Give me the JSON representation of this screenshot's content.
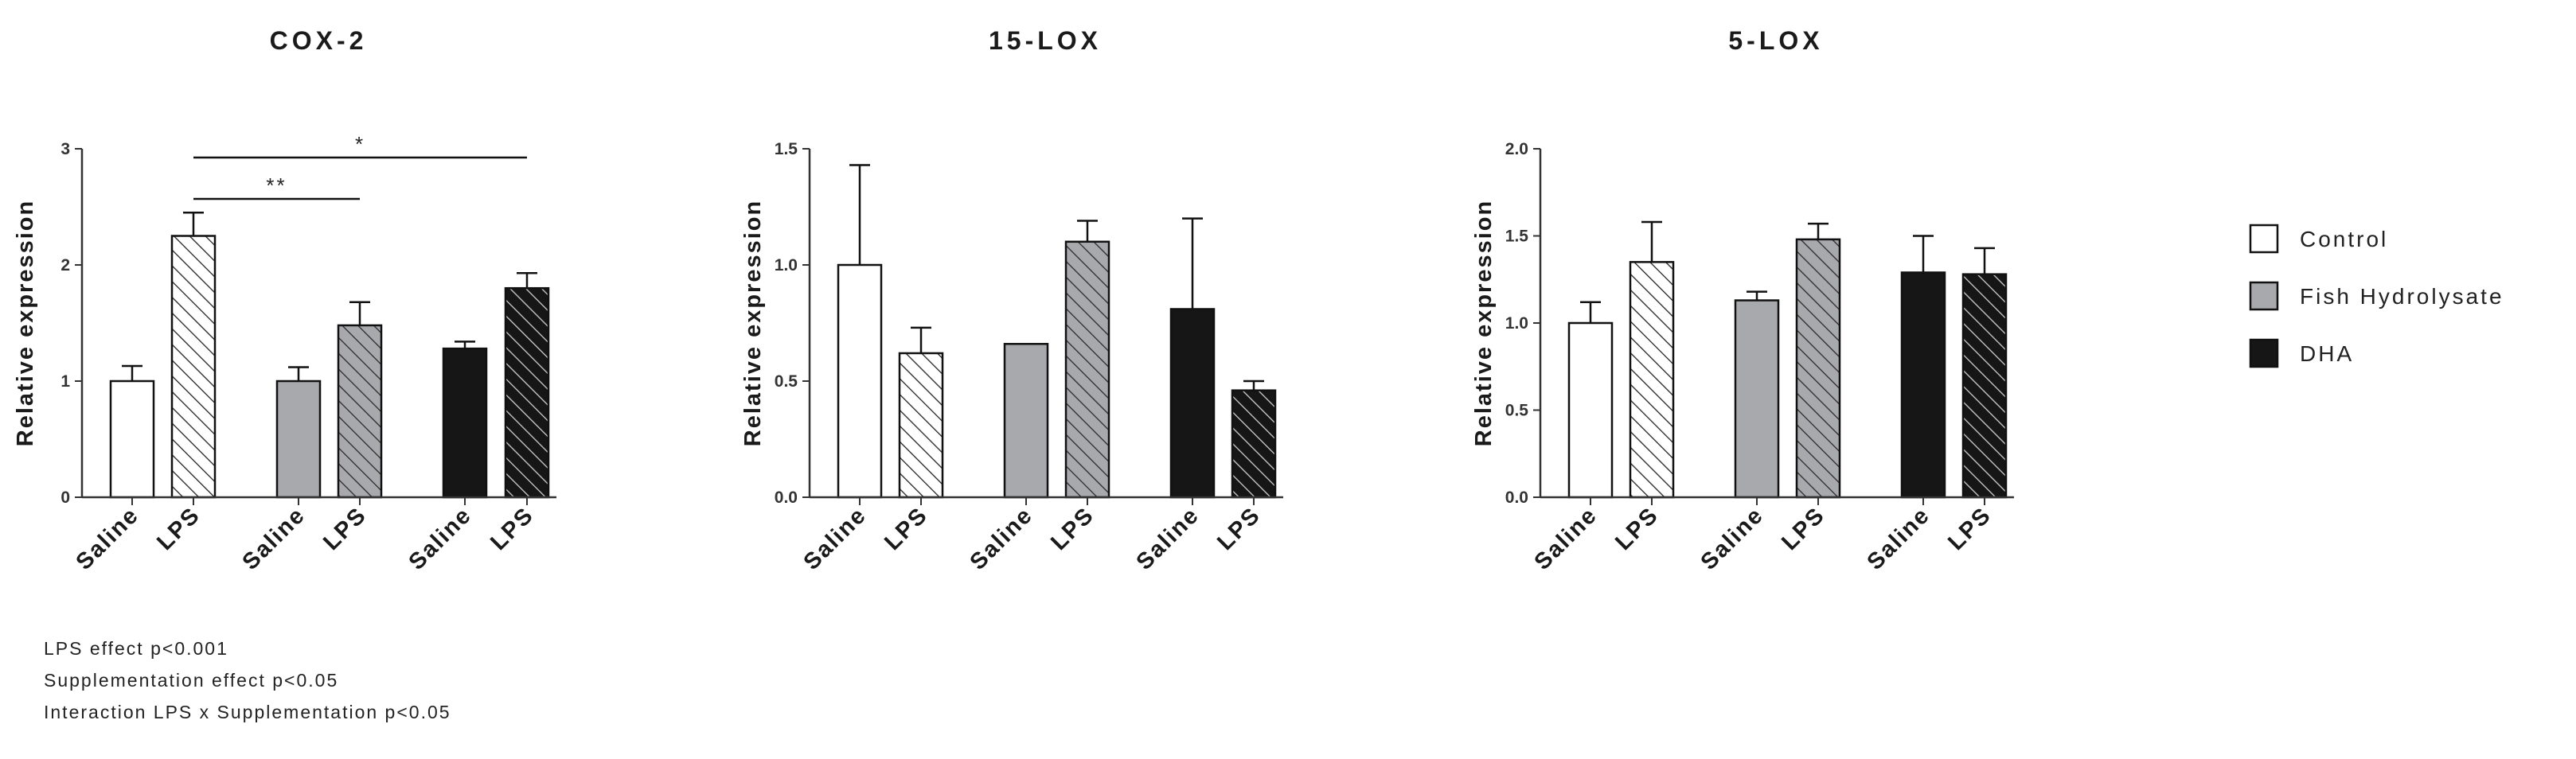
{
  "chart_data": [
    {
      "type": "bar",
      "title": "COX-2",
      "ylabel": "Relative expression",
      "ylim": [
        0,
        3
      ],
      "yticks": [
        "0",
        "1",
        "2",
        "3"
      ],
      "categories": [
        "Saline",
        "LPS",
        "Saline",
        "LPS",
        "Saline",
        "LPS"
      ],
      "groups": [
        "Control",
        "Control",
        "Fish Hydrolysate",
        "Fish Hydrolysate",
        "DHA",
        "DHA"
      ],
      "values": [
        1.0,
        2.25,
        1.0,
        1.48,
        1.28,
        1.8
      ],
      "errors": [
        0.13,
        0.2,
        0.12,
        0.2,
        0.06,
        0.13
      ],
      "significance": [
        {
          "from": 1,
          "to": 3,
          "label": "**"
        },
        {
          "from": 1,
          "to": 5,
          "label": "*"
        }
      ]
    },
    {
      "type": "bar",
      "title": "15-LOX",
      "ylabel": "Relative expression",
      "ylim": [
        0,
        1.5
      ],
      "yticks": [
        "0.0",
        "0.5",
        "1.0",
        "1.5"
      ],
      "categories": [
        "Saline",
        "LPS",
        "Saline",
        "LPS",
        "Saline",
        "LPS"
      ],
      "groups": [
        "Control",
        "Control",
        "Fish Hydrolysate",
        "Fish Hydrolysate",
        "DHA",
        "DHA"
      ],
      "values": [
        1.0,
        0.62,
        0.66,
        1.1,
        0.81,
        0.46
      ],
      "errors": [
        0.43,
        0.11,
        0.0,
        0.09,
        0.39,
        0.04
      ],
      "significance": []
    },
    {
      "type": "bar",
      "title": "5-LOX",
      "ylabel": "Relative expression",
      "ylim": [
        0,
        2
      ],
      "yticks": [
        "0.0",
        "0.5",
        "1.0",
        "1.5",
        "2.0"
      ],
      "categories": [
        "Saline",
        "LPS",
        "Saline",
        "LPS",
        "Saline",
        "LPS"
      ],
      "groups": [
        "Control",
        "Control",
        "Fish Hydrolysate",
        "Fish Hydrolysate",
        "DHA",
        "DHA"
      ],
      "values": [
        1.0,
        1.35,
        1.13,
        1.48,
        1.29,
        1.28
      ],
      "errors": [
        0.12,
        0.23,
        0.05,
        0.09,
        0.21,
        0.15
      ],
      "significance": []
    }
  ],
  "legend": [
    {
      "label": "Control",
      "color": "#ffffff"
    },
    {
      "label": "Fish Hydrolysate",
      "color": "#a8a9ad"
    },
    {
      "label": "DHA",
      "color": "#161616"
    }
  ],
  "statistics_notes": [
    "LPS effect p<0.001",
    "Supplementation effect p<0.05",
    "Interaction LPS x Supplementation p<0.05"
  ]
}
